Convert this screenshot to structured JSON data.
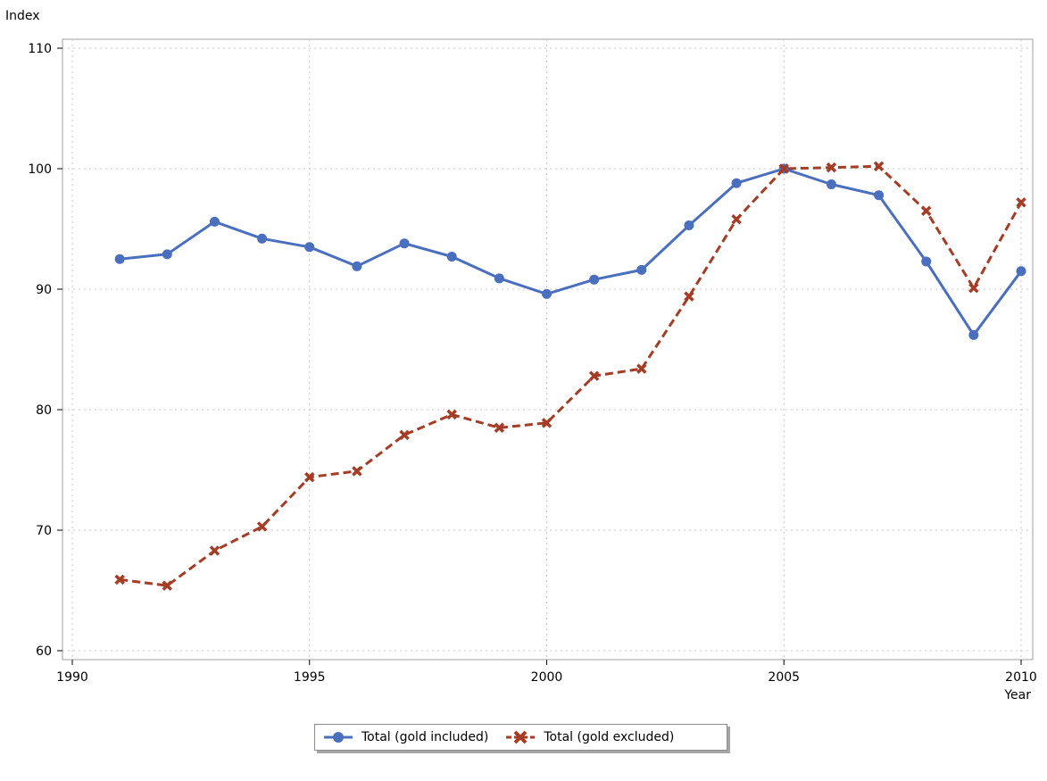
{
  "chart_data": {
    "type": "line",
    "xlabel": "Year",
    "ylabel": "Index",
    "xlim": [
      1990,
      2010
    ],
    "ylim": [
      60,
      110
    ],
    "xticks": [
      1990,
      1995,
      2000,
      2005,
      2010
    ],
    "yticks": [
      60,
      70,
      80,
      90,
      100,
      110
    ],
    "grid": true,
    "legend_position": "bottom",
    "x": [
      1991,
      1992,
      1993,
      1994,
      1995,
      1996,
      1997,
      1998,
      1999,
      2000,
      2001,
      2002,
      2003,
      2004,
      2005,
      2006,
      2007,
      2008,
      2009,
      2010
    ],
    "series": [
      {
        "name": "Total (gold included)",
        "color": "#4a6fbf",
        "marker": "circle",
        "line_style": "solid",
        "values": [
          92.5,
          92.9,
          95.6,
          94.2,
          93.5,
          91.9,
          93.8,
          92.7,
          90.9,
          89.6,
          90.8,
          91.6,
          95.3,
          98.8,
          100.0,
          98.7,
          97.8,
          92.3,
          86.2,
          91.5
        ]
      },
      {
        "name": "Total (gold excluded)",
        "color": "#a43c26",
        "marker": "x",
        "line_style": "dashed",
        "values": [
          65.9,
          65.4,
          68.3,
          70.3,
          74.4,
          74.9,
          77.9,
          79.6,
          78.5,
          78.9,
          82.8,
          83.4,
          89.4,
          95.8,
          100.0,
          100.1,
          100.2,
          96.5,
          90.1,
          97.2
        ]
      }
    ]
  }
}
